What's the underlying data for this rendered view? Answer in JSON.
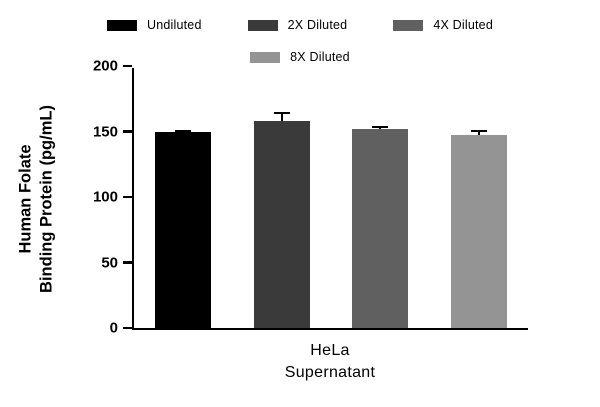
{
  "figure": {
    "background": "#ffffff",
    "axis_color": "#000000"
  },
  "legend": {
    "rows": [
      [
        {
          "label": "Undiluted",
          "color": "#000000"
        },
        {
          "label": "2X Diluted",
          "color": "#3a3a3a"
        },
        {
          "label": "4X Diluted",
          "color": "#606060"
        }
      ],
      [
        {
          "label": "8X Diluted",
          "color": "#949494"
        }
      ]
    ]
  },
  "chart_data": {
    "type": "bar",
    "categories": [
      "Undiluted",
      "2X Diluted",
      "4X Diluted",
      "8X Diluted"
    ],
    "values": [
      150,
      158,
      152,
      147
    ],
    "errors_plus": [
      1,
      7,
      2,
      4
    ],
    "bar_colors": [
      "#000000",
      "#3a3a3a",
      "#606060",
      "#949494"
    ],
    "title": "",
    "xlabel": "HeLa Supernatant",
    "ylabel": "Human Folate Binding Protein (pg/mL)",
    "ylim": [
      0,
      200
    ],
    "yticks": [
      0,
      50,
      100,
      150,
      200
    ],
    "legend_position": "top",
    "grid": false
  },
  "labels": {
    "ylabel_line1": "Human Folate",
    "ylabel_line2": "Binding Protein (pg/mL)",
    "xlabel_line1": "HeLa",
    "xlabel_line2": "Supernatant"
  }
}
